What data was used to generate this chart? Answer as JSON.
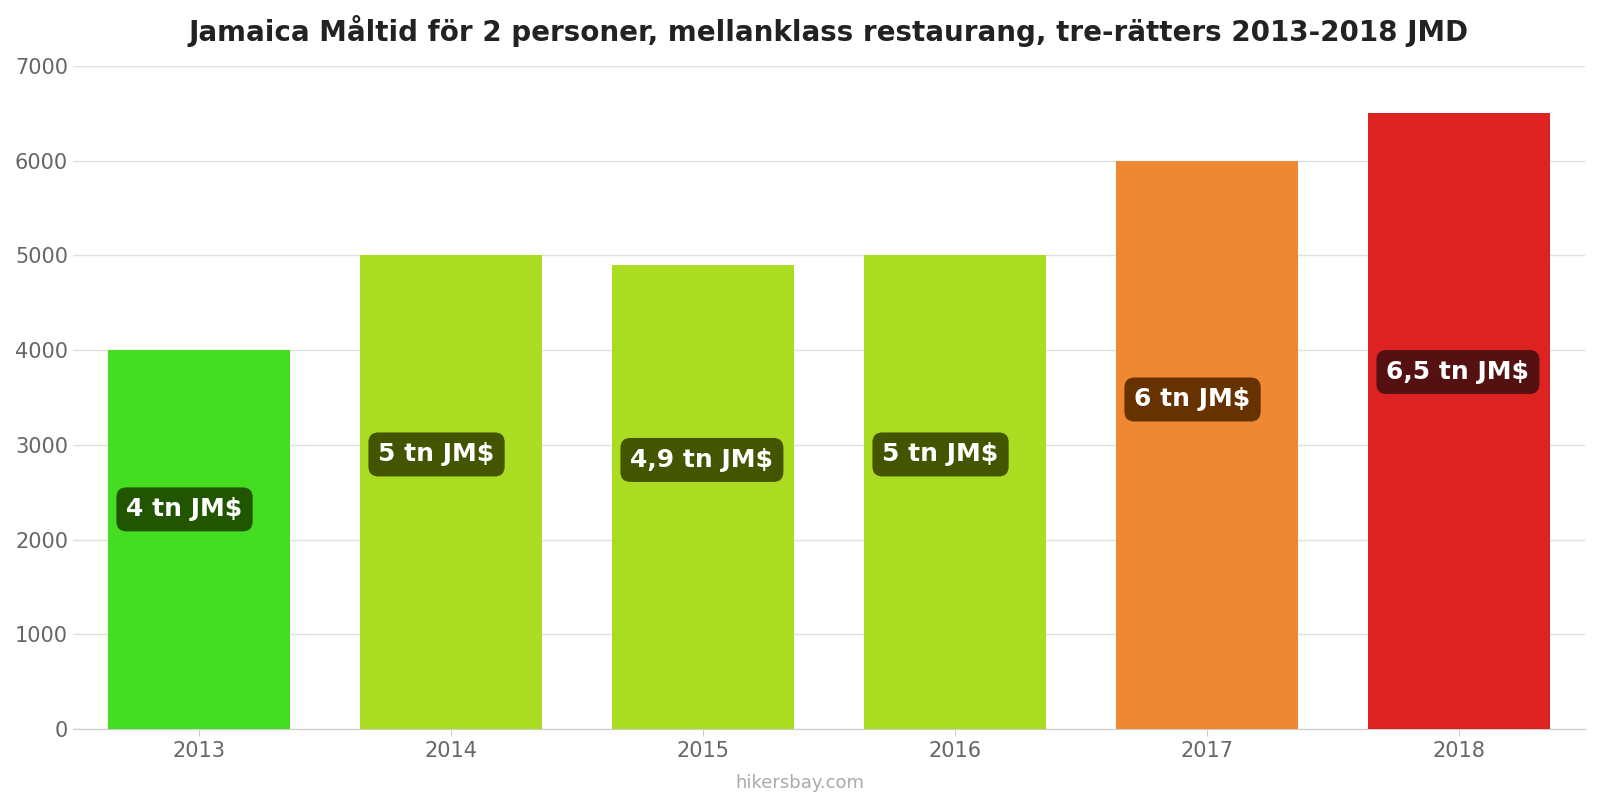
{
  "title": "Jamaica Måltid för 2 personer, mellanklass restaurang, tre-rätters 2013-2018 JMD",
  "years": [
    2013,
    2014,
    2015,
    2016,
    2017,
    2018
  ],
  "values": [
    4000,
    5000,
    4900,
    5000,
    6000,
    6500
  ],
  "labels": [
    "4 tn JM$",
    "5 tn JM$",
    "4,9 tn JM$",
    "5 tn JM$",
    "6 tn JM$",
    "6,5 tn JM$"
  ],
  "bar_colors": [
    "#44dd22",
    "#aadd22",
    "#aadd22",
    "#aadd22",
    "#ee8833",
    "#dd2222"
  ],
  "label_bg_colors": [
    "#225500",
    "#445500",
    "#445500",
    "#445500",
    "#663300",
    "#551111"
  ],
  "ylim": [
    0,
    7000
  ],
  "yticks": [
    0,
    1000,
    2000,
    3000,
    4000,
    5000,
    6000,
    7000
  ],
  "watermark": "hikersbay.com",
  "bg_color": "#ffffff",
  "grid_color": "#e0e0e0",
  "title_fontsize": 20,
  "tick_fontsize": 15,
  "label_fontsize": 18,
  "watermark_fontsize": 13
}
